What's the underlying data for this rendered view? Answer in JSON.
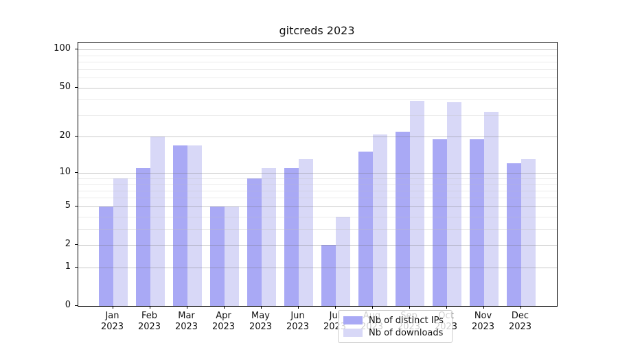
{
  "title": "gitcreds 2023",
  "legend": {
    "items": [
      {
        "label": "Nb of distinct IPs",
        "color": "#a9a9f5"
      },
      {
        "label": "Nb of downloads",
        "color": "#d8d8f7"
      }
    ]
  },
  "chart_data": {
    "type": "bar",
    "title": "gitcreds 2023",
    "categories": [
      "Jan 2023",
      "Feb 2023",
      "Mar 2023",
      "Apr 2023",
      "May 2023",
      "Jun 2023",
      "Jul 2023",
      "Aug 2023",
      "Sep 2023",
      "Oct 2023",
      "Nov 2023",
      "Dec 2023"
    ],
    "series": [
      {
        "name": "Nb of distinct IPs",
        "color": "#a9a9f5",
        "values": [
          5,
          11,
          17,
          5,
          9,
          11,
          2,
          15,
          22,
          19,
          19,
          12
        ]
      },
      {
        "name": "Nb of downloads",
        "color": "#d8d8f7",
        "values": [
          9,
          20,
          17,
          5,
          11,
          13,
          4,
          21,
          39,
          38,
          32,
          13
        ]
      }
    ],
    "xlabel": "",
    "ylabel": "",
    "y_scale": "log1p",
    "ylim": [
      0,
      113.5
    ],
    "y_major_ticks": [
      0,
      1,
      2,
      5,
      10,
      20,
      50,
      100
    ],
    "y_minor_gridlines": [
      3,
      4,
      6,
      7,
      8,
      9,
      30,
      40,
      60,
      70,
      80,
      90
    ],
    "grid": true,
    "legend_position": "bottom-center"
  }
}
